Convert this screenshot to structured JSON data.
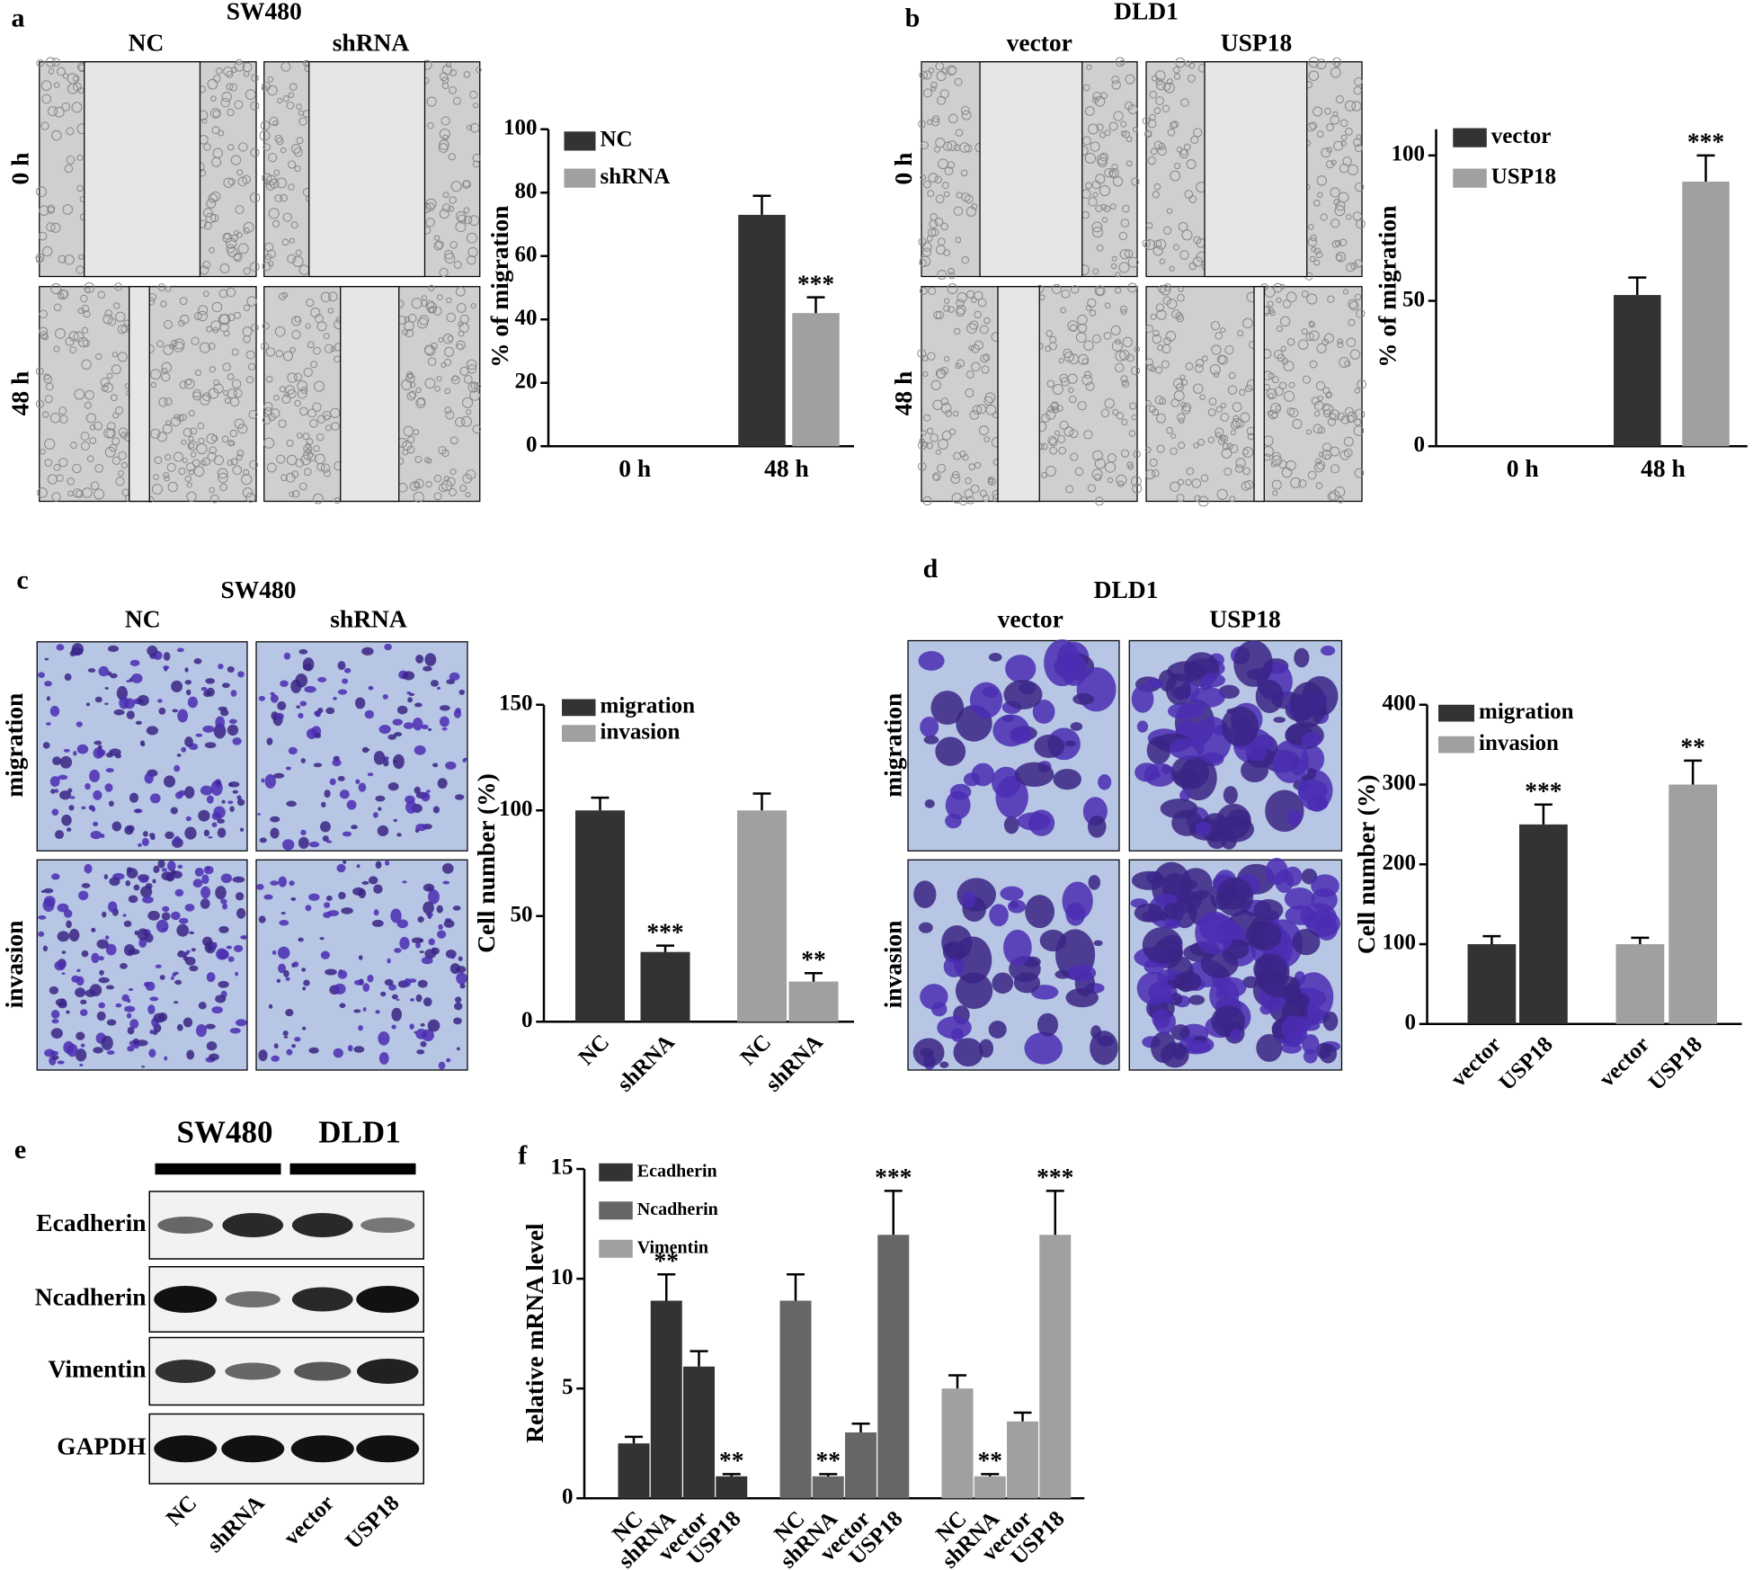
{
  "panels": {
    "a": {
      "letter": "a",
      "cell_line": "SW480",
      "columns": [
        "NC",
        "shRNA"
      ],
      "rows": [
        "0 h",
        "48 h"
      ]
    },
    "b": {
      "letter": "b",
      "cell_line": "DLD1",
      "columns": [
        "vector",
        "USP18"
      ],
      "rows": [
        "0 h",
        "48 h"
      ]
    },
    "c": {
      "letter": "c",
      "cell_line": "SW480",
      "columns": [
        "NC",
        "shRNA"
      ],
      "rows": [
        "migration",
        "invasion"
      ]
    },
    "d": {
      "letter": "d",
      "cell_line": "DLD1",
      "columns": [
        "vector",
        "USP18"
      ],
      "rows": [
        "migration",
        "invasion"
      ]
    },
    "e": {
      "letter": "e",
      "cell_lines": [
        "SW480",
        "DLD1"
      ],
      "proteins": [
        "Ecadherin",
        "Ncadherin",
        "Vimentin",
        "GAPDH"
      ],
      "lanes": [
        "NC",
        "shRNA",
        "vector",
        "USP18"
      ]
    },
    "f": {
      "letter": "f"
    }
  },
  "chart_data": [
    {
      "type": "bar",
      "grouping": "by_category",
      "ylabel": "% of migration",
      "categories": [
        "0 h",
        "48 h"
      ],
      "series": [
        {
          "name": "NC",
          "color": "#333333",
          "values": [
            0,
            73
          ],
          "errors": [
            null,
            6
          ],
          "labels": [
            null,
            null
          ]
        },
        {
          "name": "shRNA",
          "color": "#a0a0a3",
          "values": [
            0,
            42
          ],
          "errors": [
            null,
            5
          ],
          "labels": [
            null,
            "***"
          ]
        }
      ],
      "ylim": [
        0,
        100
      ],
      "yticks": [
        0,
        20,
        40,
        60,
        80,
        100
      ]
    },
    {
      "type": "bar",
      "grouping": "by_category",
      "ylabel": "% of migration",
      "categories": [
        "0 h",
        "48 h"
      ],
      "series": [
        {
          "name": "vector",
          "color": "#333333",
          "values": [
            0,
            52
          ],
          "errors": [
            null,
            6
          ],
          "labels": [
            null,
            null
          ]
        },
        {
          "name": "USP18",
          "color": "#a0a0a3",
          "values": [
            0,
            91
          ],
          "errors": [
            null,
            9
          ],
          "labels": [
            null,
            "***"
          ]
        }
      ],
      "ylim": [
        0,
        109
      ],
      "yticks": [
        0,
        50,
        100
      ]
    },
    {
      "type": "bar",
      "grouping": "by_series",
      "ylabel": "Cell number (%)",
      "categories": [
        "NC",
        "shRNA"
      ],
      "series": [
        {
          "name": "migration",
          "color": "#333333",
          "values": [
            100,
            33
          ],
          "errors": [
            6,
            3
          ],
          "labels": [
            null,
            "***"
          ]
        },
        {
          "name": "invasion",
          "color": "#a0a0a3",
          "values": [
            100,
            19
          ],
          "errors": [
            8,
            4
          ],
          "labels": [
            null,
            "**"
          ]
        }
      ],
      "ylim": [
        0,
        150
      ],
      "yticks": [
        0,
        50,
        100,
        150
      ]
    },
    {
      "type": "bar",
      "grouping": "by_series",
      "ylabel": "Cell number (%)",
      "categories": [
        "vector",
        "USP18"
      ],
      "series": [
        {
          "name": "migration",
          "color": "#333333",
          "values": [
            100,
            250
          ],
          "errors": [
            10,
            25
          ],
          "labels": [
            null,
            "***"
          ]
        },
        {
          "name": "invasion",
          "color": "#a0a0a3",
          "values": [
            100,
            300
          ],
          "errors": [
            8,
            30
          ],
          "labels": [
            null,
            "**"
          ]
        }
      ],
      "ylim": [
        0,
        400
      ],
      "yticks": [
        0,
        100,
        200,
        300,
        400
      ]
    },
    {
      "type": "bar",
      "grouping": "by_series",
      "ylabel": "Relative mRNA level",
      "categories": [
        "NC",
        "shRNA",
        "vector",
        "USP18"
      ],
      "series": [
        {
          "name": "Ecadherin",
          "color": "#333333",
          "values": [
            2.5,
            9,
            6,
            1
          ],
          "errors": [
            0.3,
            1.2,
            0.7,
            0.1
          ],
          "labels": [
            null,
            "**",
            null,
            "**"
          ]
        },
        {
          "name": "Ncadherin",
          "color": "#666666",
          "values": [
            9,
            1,
            3,
            12
          ],
          "errors": [
            1.2,
            0.1,
            0.4,
            2
          ],
          "labels": [
            null,
            "**",
            null,
            "***"
          ]
        },
        {
          "name": "Vimentin",
          "color": "#a0a0a3",
          "values": [
            5,
            1,
            3.5,
            12
          ],
          "errors": [
            0.6,
            0.1,
            0.4,
            2
          ],
          "labels": [
            null,
            "**",
            null,
            "***"
          ]
        }
      ],
      "ylim": [
        0,
        15
      ],
      "yticks": [
        0,
        5,
        10,
        15
      ]
    }
  ]
}
